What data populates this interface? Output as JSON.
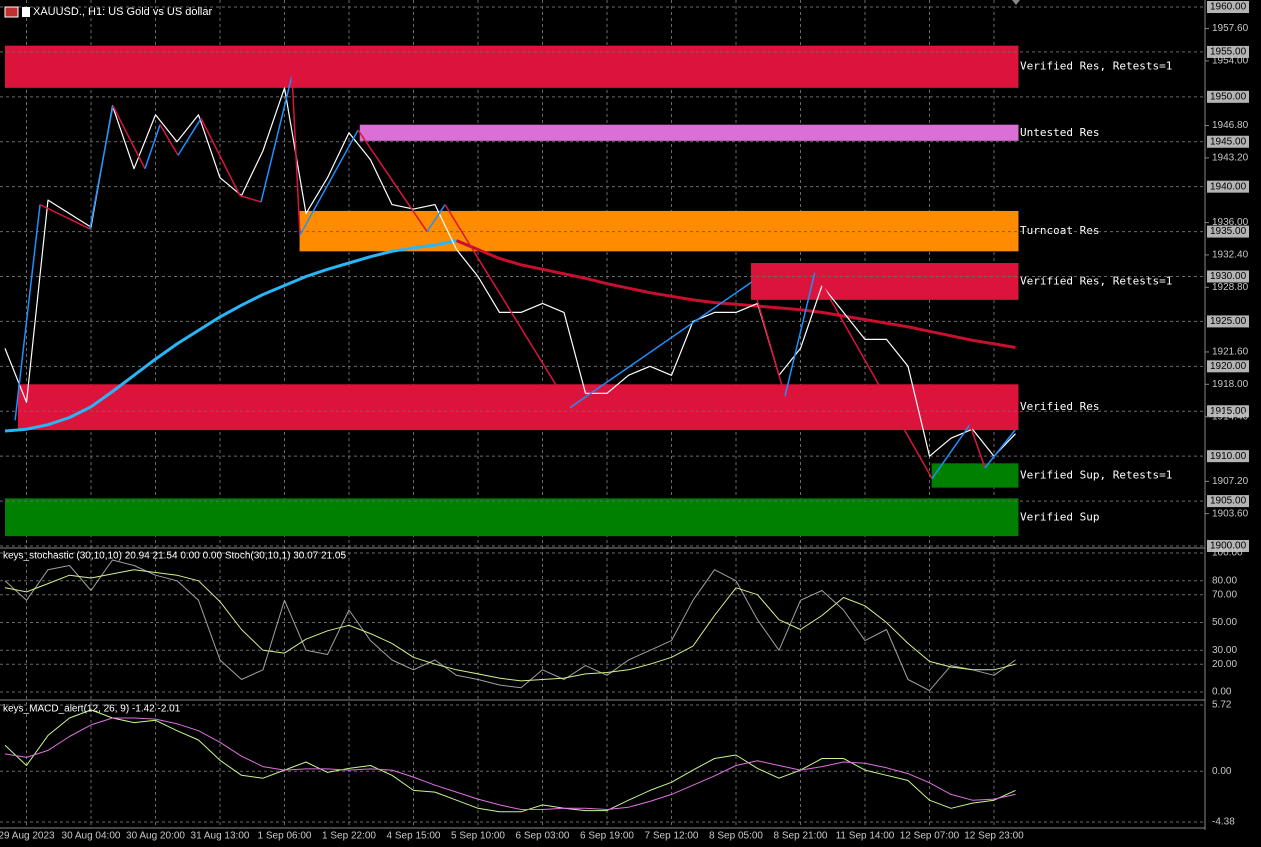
{
  "chart_data": [
    {
      "type": "line",
      "title": "XAUUSD., H1: US Gold vs US dollar",
      "color": "#ffffff",
      "ylim": [
        1900,
        1960
      ],
      "yticks": [
        {
          "value": 1957.6,
          "label": "1957.60"
        },
        {
          "value": 1954,
          "label": "1954.00"
        },
        {
          "value": 1946.8,
          "label": "1946.80"
        },
        {
          "value": 1943.2,
          "label": "1943.20"
        },
        {
          "value": 1936,
          "label": "1936.00"
        },
        {
          "value": 1932.4,
          "label": "1932.40"
        },
        {
          "value": 1928.8,
          "label": "1928.80"
        },
        {
          "value": 1921.6,
          "label": "1921.60"
        },
        {
          "value": 1918,
          "label": "1918.00"
        },
        {
          "value": 1914.4,
          "label": "1914.40"
        },
        {
          "value": 1907.2,
          "label": "1907.20"
        },
        {
          "value": 1903.6,
          "label": "1903.60"
        }
      ],
      "grid_levels": [
        {
          "value": 1960,
          "label": "1960.00"
        },
        {
          "value": 1955,
          "label": "1955.00"
        },
        {
          "value": 1950,
          "label": "1950.00"
        },
        {
          "value": 1945,
          "label": "1945.00"
        },
        {
          "value": 1940,
          "label": "1940.00"
        },
        {
          "value": 1935,
          "label": "1935.00"
        },
        {
          "value": 1930,
          "label": "1930.00"
        },
        {
          "value": 1925,
          "label": "1925.00"
        },
        {
          "value": 1920,
          "label": "1920.00"
        },
        {
          "value": 1915,
          "label": "1915.00"
        },
        {
          "value": 1910,
          "label": "1910.00"
        },
        {
          "value": 1905,
          "label": "1905.00"
        },
        {
          "value": 1900,
          "label": "1900.00"
        }
      ],
      "grid": true,
      "values": [
        1922,
        1916,
        1938.5,
        1937,
        1935.5,
        1949,
        1942,
        1948,
        1945,
        1948,
        1941,
        1939,
        1944,
        1951,
        1937,
        1941,
        1946,
        1943,
        1938,
        1937.5,
        1938,
        1933,
        1930,
        1926,
        1926,
        1927,
        1926,
        1917,
        1917,
        1919,
        1920,
        1919,
        1925,
        1926,
        1926,
        1927,
        1919,
        1922,
        1929,
        1926,
        1923,
        1923,
        1920,
        1910,
        1912,
        1913,
        1910,
        1912.5
      ],
      "ma_rising": {
        "color": "#29b6f6",
        "values": [
          1912.8,
          1913,
          1913.5,
          1914.3,
          1915.5,
          1917.2,
          1919,
          1920.8,
          1922.5,
          1924,
          1925.5,
          1926.8,
          1928,
          1929,
          1930,
          1930.8,
          1931.5,
          1932.2,
          1932.8,
          1933.2,
          1933.5,
          1934,
          null,
          null,
          null,
          null,
          null,
          null,
          null,
          null,
          null,
          null,
          null,
          null,
          null,
          null,
          null,
          null,
          null,
          null,
          null,
          null,
          null,
          null,
          null,
          null,
          null,
          null
        ]
      },
      "ma_falling": {
        "color": "#c8102e",
        "values": [
          null,
          null,
          null,
          null,
          null,
          null,
          null,
          null,
          null,
          null,
          null,
          null,
          null,
          null,
          null,
          null,
          null,
          null,
          null,
          null,
          null,
          1934,
          1933,
          1932,
          1931.3,
          1930.8,
          1930.3,
          1929.8,
          1929.2,
          1928.7,
          1928.2,
          1927.8,
          1927.4,
          1927.1,
          1926.9,
          1926.7,
          1926.5,
          1926.3,
          1926,
          1925.6,
          1925.2,
          1924.8,
          1924.4,
          1923.9,
          1923.4,
          1922.9,
          1922.5,
          1922.1
        ]
      },
      "zigzag": {
        "up_color": "#1e90ff",
        "down_color": "#dc143c",
        "x": [
          0.47,
          1.63,
          3.95,
          5.02,
          6.51,
          7.21,
          8.05,
          9.12,
          10.93,
          11.91,
          13.35,
          13.72,
          16.42,
          19.63,
          20.47,
          26.28,
          34.74,
          36.28,
          37.67,
          43.12,
          44.88,
          45.58,
          46.98
        ],
        "values": [
          1914,
          1938,
          1935.3,
          1949,
          1942,
          1946.9,
          1943.5,
          1947.6,
          1939,
          1938.3,
          1952.4,
          1934.6,
          1946.3,
          1935,
          1938,
          1915.4,
          1929.4,
          1916.7,
          1930.5,
          1907.5,
          1913.5,
          1908.7,
          1912.9
        ]
      },
      "zones": [
        {
          "label": "Verified Res, Retests=1",
          "low": 1951,
          "high": 1955.7,
          "from": 0,
          "color": "#dc143c"
        },
        {
          "label": "Untested Res",
          "low": 1945.1,
          "high": 1946.9,
          "from": 16.5,
          "color": "#da70d6"
        },
        {
          "label": "Turncoat Res",
          "low": 1932.8,
          "high": 1937.3,
          "from": 13.7,
          "color": "#ff8c00"
        },
        {
          "label": "Verified Res, Retests=1",
          "low": 1927.4,
          "high": 1931.5,
          "from": 34.7,
          "color": "#dc143c"
        },
        {
          "label": "Verified Res",
          "low": 1912.9,
          "high": 1918,
          "from": 0.6,
          "color": "#dc143c"
        },
        {
          "label": "Verified Sup, Retests=1",
          "low": 1906.5,
          "high": 1909.2,
          "from": 43.1,
          "color": "#008000"
        },
        {
          "label": "Verified Sup",
          "low": 1901.1,
          "high": 1905.3,
          "from": 0,
          "color": "#008000"
        }
      ]
    },
    {
      "type": "line",
      "title": "keys_stochastic (30,10,10) 20.94 21.54 0.00 0.00 Stoch(30,10,1) 30.07 21.05",
      "ylim": [
        0,
        100
      ],
      "yticks": [
        {
          "value": 100,
          "label": "100.00"
        },
        {
          "value": 80,
          "label": "80.00"
        },
        {
          "value": 70,
          "label": "70.00"
        },
        {
          "value": 50,
          "label": "50.00"
        },
        {
          "value": 30,
          "label": "30.00"
        },
        {
          "value": 20,
          "label": "20.00"
        },
        {
          "value": 0,
          "label": "0.00"
        }
      ],
      "series": [
        {
          "color": "#a0a0a0",
          "values": [
            80,
            66,
            88,
            91,
            73,
            95,
            91,
            84,
            80,
            66,
            23,
            9,
            16,
            66,
            30,
            27,
            59,
            37,
            23,
            16,
            23,
            12,
            9,
            5,
            3,
            16,
            9,
            19,
            12,
            23,
            30,
            37,
            66,
            88,
            80,
            52,
            30,
            66,
            73,
            59,
            37,
            45,
            9,
            1,
            19,
            16,
            12,
            23
          ]
        },
        {
          "color": "#d4f08c",
          "values": [
            75,
            72,
            78,
            84,
            82,
            85,
            88,
            86,
            84,
            80,
            65,
            45,
            30,
            28,
            38,
            44,
            48,
            42,
            35,
            25,
            20,
            16,
            13,
            10,
            8,
            9,
            10,
            13,
            14,
            16,
            20,
            25,
            33,
            55,
            75,
            70,
            52,
            45,
            55,
            68,
            62,
            50,
            35,
            22,
            18,
            16,
            16,
            20
          ]
        }
      ]
    },
    {
      "type": "line",
      "title": "keys_MACD_alert(12, 26, 9) -1.42 -2.01",
      "ylim": [
        -4.38,
        5.72
      ],
      "yticks": [
        5.72,
        {
          "value": 0,
          "label": "0.00"
        },
        -4.38
      ],
      "categories": [
        null,
        "29 Aug 2023",
        null,
        null,
        "30 Aug 04:00",
        null,
        null,
        "30 Aug 20:00",
        null,
        null,
        "31 Aug 13:00",
        null,
        null,
        "1 Sep 06:00",
        null,
        null,
        "1 Sep 22:00",
        null,
        null,
        "4 Sep 15:00",
        null,
        null,
        "5 Sep 10:00",
        null,
        null,
        "6 Sep 03:00",
        null,
        null,
        "6 Sep 19:00",
        null,
        null,
        "7 Sep 12:00",
        null,
        null,
        "8 Sep 05:00",
        null,
        null,
        "8 Sep 21:00",
        null,
        null,
        "11 Sep 14:00",
        null,
        null,
        "12 Sep 07:00",
        null,
        null,
        "12 Sep 23:00",
        null
      ],
      "series": [
        {
          "color": "#c8f58c",
          "values": [
            2.25,
            0.5,
            3.1,
            4.6,
            5.3,
            4.6,
            4.2,
            4.4,
            3.5,
            2.7,
            0.95,
            -0.35,
            -0.6,
            0.1,
            0.8,
            -0.1,
            0.25,
            0.5,
            -0.35,
            -1.65,
            -1.8,
            -2.5,
            -3.2,
            -3.5,
            -3.5,
            -2.9,
            -3.2,
            -3.4,
            -3.4,
            -2.5,
            -1.65,
            -0.95,
            0.1,
            1.1,
            1.4,
            0.25,
            -0.6,
            0.1,
            1.1,
            1.1,
            0.1,
            -0.35,
            -0.8,
            -2.5,
            -3.2,
            -2.75,
            -2.5,
            -1.65
          ]
        },
        {
          "color": "#e070e0",
          "values": [
            1.5,
            1.2,
            1.8,
            3,
            4,
            4.6,
            4.6,
            4.5,
            4.1,
            3.5,
            2.5,
            1.3,
            0.4,
            0.1,
            0.2,
            0.2,
            0.1,
            0.2,
            0.1,
            -0.5,
            -1.2,
            -1.8,
            -2.4,
            -2.9,
            -3.3,
            -3.3,
            -3.2,
            -3.2,
            -3.3,
            -3.1,
            -2.6,
            -2,
            -1.2,
            -0.4,
            0.5,
            0.9,
            0.5,
            0.1,
            0.4,
            0.8,
            0.7,
            0.3,
            -0.2,
            -1,
            -2,
            -2.5,
            -2.4,
            -2
          ]
        }
      ]
    }
  ]
}
